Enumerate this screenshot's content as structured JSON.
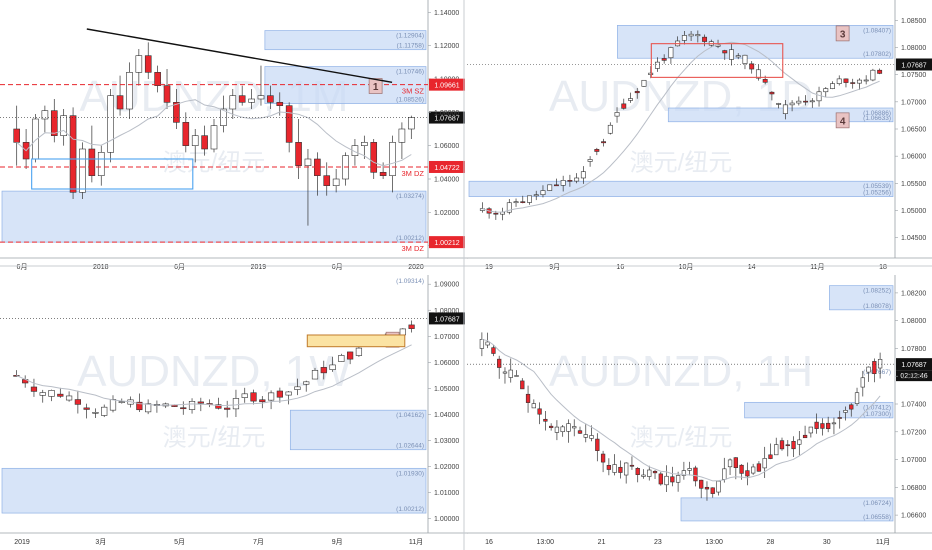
{
  "symbol": "AUDNZD",
  "watermark_cn": "澳元/纽元",
  "colors": {
    "up": "#26a046",
    "down": "#e8262d",
    "zone": "#c9dbf5",
    "zone_stroke": "#8fb1e6",
    "price_tag": "#111111",
    "sz_tag": "#e8262d",
    "orange_zone": "#fbe3a3"
  },
  "current_price": "1.07687",
  "chart_data": [
    {
      "id": "monthly",
      "type": "candlestick",
      "watermark_tf": "1M",
      "ylim": [
        0.995,
        1.145
      ],
      "y_ticks": [
        "1.14000",
        "1.12000",
        "1.10000",
        "1.08000",
        "1.06000",
        "1.04000",
        "1.02000",
        "1.00000"
      ],
      "x_ticks": [
        "6月",
        "2018",
        "6月",
        "2019",
        "6月",
        "2020"
      ],
      "candles": [
        {
          "o": 1.07,
          "h": 1.084,
          "l": 1.048,
          "c": 1.062
        },
        {
          "o": 1.062,
          "h": 1.07,
          "l": 1.046,
          "c": 1.052
        },
        {
          "o": 1.052,
          "h": 1.079,
          "l": 1.05,
          "c": 1.076
        },
        {
          "o": 1.076,
          "h": 1.084,
          "l": 1.068,
          "c": 1.081
        },
        {
          "o": 1.081,
          "h": 1.088,
          "l": 1.062,
          "c": 1.066
        },
        {
          "o": 1.066,
          "h": 1.082,
          "l": 1.06,
          "c": 1.078
        },
        {
          "o": 1.078,
          "h": 1.083,
          "l": 1.028,
          "c": 1.032
        },
        {
          "o": 1.032,
          "h": 1.062,
          "l": 1.028,
          "c": 1.058
        },
        {
          "o": 1.058,
          "h": 1.072,
          "l": 1.038,
          "c": 1.042
        },
        {
          "o": 1.042,
          "h": 1.06,
          "l": 1.036,
          "c": 1.056
        },
        {
          "o": 1.056,
          "h": 1.094,
          "l": 1.05,
          "c": 1.09
        },
        {
          "o": 1.09,
          "h": 1.102,
          "l": 1.078,
          "c": 1.082
        },
        {
          "o": 1.082,
          "h": 1.11,
          "l": 1.076,
          "c": 1.104
        },
        {
          "o": 1.104,
          "h": 1.118,
          "l": 1.096,
          "c": 1.114
        },
        {
          "o": 1.114,
          "h": 1.122,
          "l": 1.1,
          "c": 1.104
        },
        {
          "o": 1.104,
          "h": 1.108,
          "l": 1.092,
          "c": 1.096
        },
        {
          "o": 1.096,
          "h": 1.106,
          "l": 1.082,
          "c": 1.086
        },
        {
          "o": 1.086,
          "h": 1.094,
          "l": 1.07,
          "c": 1.074
        },
        {
          "o": 1.074,
          "h": 1.08,
          "l": 1.056,
          "c": 1.06
        },
        {
          "o": 1.06,
          "h": 1.07,
          "l": 1.05,
          "c": 1.066
        },
        {
          "o": 1.066,
          "h": 1.072,
          "l": 1.054,
          "c": 1.058
        },
        {
          "o": 1.058,
          "h": 1.076,
          "l": 1.056,
          "c": 1.072
        },
        {
          "o": 1.072,
          "h": 1.09,
          "l": 1.068,
          "c": 1.082
        },
        {
          "o": 1.082,
          "h": 1.094,
          "l": 1.076,
          "c": 1.09
        },
        {
          "o": 1.09,
          "h": 1.096,
          "l": 1.084,
          "c": 1.086
        },
        {
          "o": 1.086,
          "h": 1.094,
          "l": 1.082,
          "c": 1.088
        },
        {
          "o": 1.088,
          "h": 1.108,
          "l": 1.084,
          "c": 1.09
        },
        {
          "o": 1.09,
          "h": 1.096,
          "l": 1.082,
          "c": 1.086
        },
        {
          "o": 1.086,
          "h": 1.092,
          "l": 1.078,
          "c": 1.084
        },
        {
          "o": 1.084,
          "h": 1.086,
          "l": 1.056,
          "c": 1.062
        },
        {
          "o": 1.062,
          "h": 1.076,
          "l": 1.04,
          "c": 1.048
        },
        {
          "o": 1.048,
          "h": 1.058,
          "l": 1.012,
          "c": 1.052
        },
        {
          "o": 1.052,
          "h": 1.056,
          "l": 1.03,
          "c": 1.042
        },
        {
          "o": 1.042,
          "h": 1.05,
          "l": 1.03,
          "c": 1.036
        },
        {
          "o": 1.036,
          "h": 1.046,
          "l": 1.032,
          "c": 1.04
        },
        {
          "o": 1.04,
          "h": 1.056,
          "l": 1.036,
          "c": 1.054
        },
        {
          "o": 1.054,
          "h": 1.064,
          "l": 1.048,
          "c": 1.06
        },
        {
          "o": 1.06,
          "h": 1.066,
          "l": 1.052,
          "c": 1.062
        },
        {
          "o": 1.062,
          "h": 1.064,
          "l": 1.04,
          "c": 1.044
        },
        {
          "o": 1.044,
          "h": 1.05,
          "l": 1.04,
          "c": 1.042
        },
        {
          "o": 1.042,
          "h": 1.066,
          "l": 1.032,
          "c": 1.062
        },
        {
          "o": 1.062,
          "h": 1.074,
          "l": 1.052,
          "c": 1.07
        },
        {
          "o": 1.07,
          "h": 1.078,
          "l": 1.064,
          "c": 1.077
        }
      ],
      "zones": [
        {
          "y1": 1.12904,
          "y2": 1.11758,
          "label_top": "(1.12904)",
          "label_bot": "(1.11758)",
          "x0": 0.62
        },
        {
          "y1": 1.10746,
          "y2": 1.08526,
          "label_top": "(1.10746)",
          "label_bot": "(1.08526)",
          "x0": 0.62
        },
        {
          "y1": 1.03274,
          "y2": 1.00212,
          "label_top": "(1.03274)",
          "label_bot": "(1.00212)",
          "x0": 0.0
        }
      ],
      "dashed_lines": [
        {
          "y": 1.09661,
          "label": "3M SZ",
          "tag": "1.09661"
        },
        {
          "y": 1.04722,
          "label": "3M DZ",
          "tag": "1.04722"
        },
        {
          "y": 1.00212,
          "label": "3M DZ",
          "tag": "1.00212"
        }
      ],
      "badge": {
        "text": "1",
        "x": 0.88,
        "y": 1.0955
      },
      "trendline": {
        "x1": 0.2,
        "y1": 1.13,
        "x2": 0.92,
        "y2": 1.098
      },
      "blue_box": {
        "x1": 0.07,
        "x2": 0.45,
        "y1": 1.052,
        "y2": 1.034
      }
    },
    {
      "id": "daily",
      "type": "candlestick",
      "watermark_tf": "1D",
      "ylim": [
        1.042,
        1.088
      ],
      "y_ticks": [
        "1.08500",
        "1.08000",
        "1.07500",
        "1.07000",
        "1.06500",
        "1.06000",
        "1.05500",
        "1.05000",
        "1.04500"
      ],
      "x_ticks": [
        "19",
        "9月",
        "16",
        "10月",
        "14",
        "11月",
        "18"
      ],
      "zones": [
        {
          "y1": 1.08407,
          "y2": 1.07802,
          "label_top": "(1.08407)",
          "label_bot": "(1.07802)",
          "x0": 0.35
        },
        {
          "y1": 1.06886,
          "y2": 1.06633,
          "label_top": "(1.06886)",
          "label_bot": "(1.06633)",
          "x0": 0.47
        },
        {
          "y1": 1.05539,
          "y2": 1.05256,
          "label_top": "(1.05539)",
          "label_bot": "(1.05256)",
          "x0": 0.0
        }
      ],
      "badges": [
        {
          "text": "3",
          "x": 0.88,
          "y": 1.0825
        },
        {
          "text": "4",
          "x": 0.88,
          "y": 1.0665
        }
      ],
      "red_box": {
        "x1": 0.43,
        "x2": 0.74,
        "y1": 1.0807,
        "y2": 1.0745
      }
    },
    {
      "id": "weekly",
      "type": "candlestick",
      "watermark_tf": "1W",
      "ylim": [
        0.996,
        1.092
      ],
      "y_ticks": [
        "1.09000",
        "1.08000",
        "1.07000",
        "1.06000",
        "1.05000",
        "1.04000",
        "1.03000",
        "1.02000",
        "1.01000",
        "1.00000"
      ],
      "x_ticks": [
        "2019",
        "3月",
        "5月",
        "7月",
        "9月",
        "11月"
      ],
      "zones": [
        {
          "y1": 1.09314,
          "y2": 1.09314,
          "label_top": "(1.09314)",
          "label_bot": "",
          "x0": 0.9
        },
        {
          "y1": 1.04162,
          "y2": 1.02644,
          "label_top": "(1.04162)",
          "label_bot": "(1.02644)",
          "x0": 0.68
        },
        {
          "y1": 1.0193,
          "y2": 1.00212,
          "label_top": "(1.01930)",
          "label_bot": "(1.00212)",
          "x0": 0.0
        }
      ],
      "badge": {
        "text": "2",
        "x": 0.92,
        "y": 1.0685
      },
      "orange_box": {
        "x1": 0.72,
        "x2": 0.95,
        "y1": 1.0705,
        "y2": 1.066
      }
    },
    {
      "id": "hourly",
      "type": "candlestick",
      "watermark_tf": "1H",
      "ylim": [
        1.065,
        1.083
      ],
      "y_ticks": [
        "1.08200",
        "1.08000",
        "1.07800",
        "1.07600",
        "1.07400",
        "1.07200",
        "1.07000",
        "1.06800",
        "1.06600"
      ],
      "x_ticks": [
        "16",
        "13:00",
        "21",
        "23",
        "13:00",
        "28",
        "30",
        "11月"
      ],
      "zones": [
        {
          "y1": 1.08252,
          "y2": 1.08078,
          "label_top": "(1.08252)",
          "label_bot": "(1.08078)",
          "x0": 0.85
        },
        {
          "y1": 1.07667,
          "y2": 1.07667,
          "label_top": "(1.07667)",
          "label_bot": "",
          "x0": 0.9
        },
        {
          "y1": 1.07412,
          "y2": 1.073,
          "label_top": "(1.07412)",
          "label_bot": "(1.07300)",
          "x0": 0.65
        },
        {
          "y1": 1.06724,
          "y2": 1.06558,
          "label_top": "(1.06724)",
          "label_bot": "(1.06558)",
          "x0": 0.5
        }
      ],
      "time_tag": "02:12:46"
    }
  ]
}
